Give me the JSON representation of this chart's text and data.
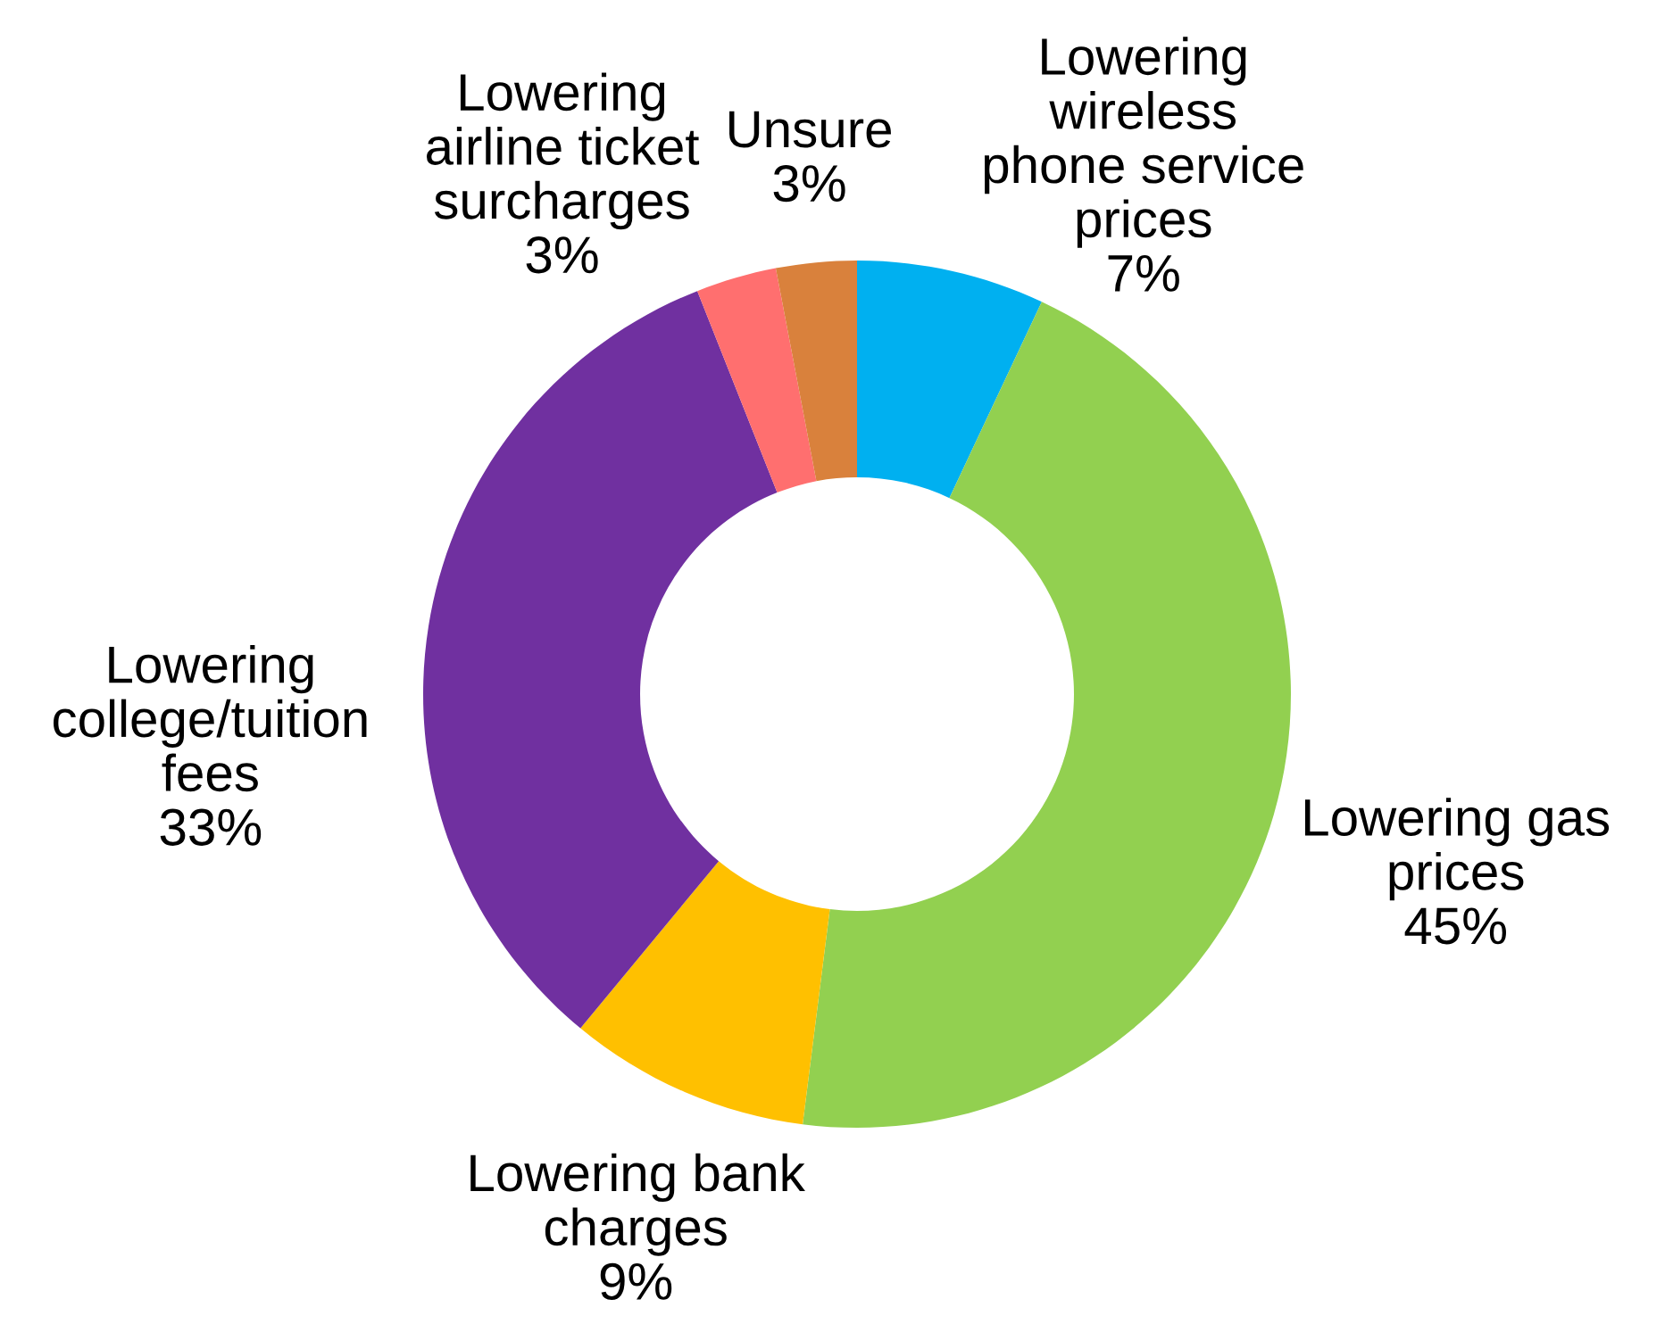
{
  "chart_data": {
    "type": "donut",
    "categories": [
      "Lowering\nwireless\nphone service\nprices",
      "Lowering gas\nprices",
      "Lowering bank\ncharges",
      "Lowering\ncollege/tuition\nfees",
      "Lowering\nairline ticket\nsurcharges",
      "Unsure"
    ],
    "values": [
      7,
      45,
      9,
      33,
      3,
      3
    ],
    "value_labels": [
      "7%",
      "45%",
      "9%",
      "33%",
      "3%",
      "3%"
    ],
    "colors": [
      "#00b0f0",
      "#92d050",
      "#ffc000",
      "#7030a0",
      "#ff6f6f",
      "#d9813c"
    ],
    "legend": false
  }
}
